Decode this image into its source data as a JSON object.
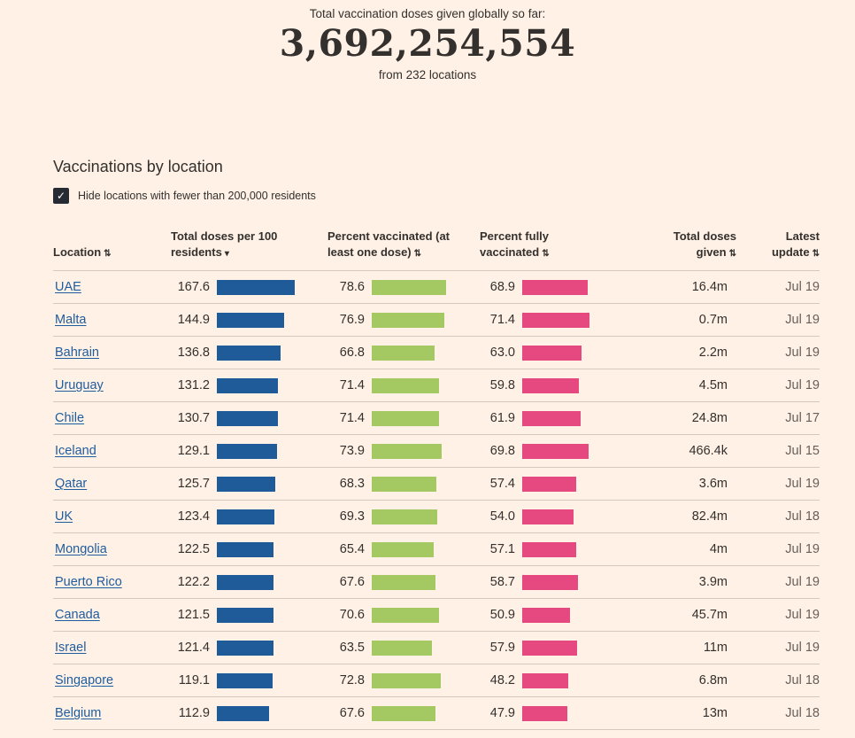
{
  "hero": {
    "label": "Total vaccination doses given globally so far:",
    "total": "3,692,254,554",
    "note": "from 232 locations"
  },
  "section": {
    "title": "Vaccinations by location",
    "filter": {
      "label": "Hide locations with fewer than 200,000 residents",
      "checked": true,
      "check_icon": "✓"
    }
  },
  "table": {
    "columns": [
      {
        "label": "Location",
        "sort_state": "sortable",
        "sort_icon": "⇅"
      },
      {
        "label": "Total doses per 100 residents",
        "sort_state": "desc",
        "sort_icon": "▾"
      },
      {
        "label": "Percent vaccinated (at least one dose)",
        "sort_state": "sortable",
        "sort_icon": "⇅"
      },
      {
        "label": "Percent fully vaccinated",
        "sort_state": "sortable",
        "sort_icon": "⇅"
      },
      {
        "label": "Total doses given",
        "sort_state": "sortable",
        "sort_icon": "⇅"
      },
      {
        "label": "Latest update",
        "sort_state": "sortable",
        "sort_icon": "⇅"
      }
    ],
    "rows": [
      {
        "location": "UAE",
        "doses_per_100": 167.6,
        "pct_vaccinated": 78.6,
        "pct_fully_vaccinated": 68.9,
        "total_doses_given": "16.4m",
        "latest_update": "Jul 19"
      },
      {
        "location": "Malta",
        "doses_per_100": 144.9,
        "pct_vaccinated": 76.9,
        "pct_fully_vaccinated": 71.4,
        "total_doses_given": "0.7m",
        "latest_update": "Jul 19"
      },
      {
        "location": "Bahrain",
        "doses_per_100": 136.8,
        "pct_vaccinated": 66.8,
        "pct_fully_vaccinated": 63.0,
        "total_doses_given": "2.2m",
        "latest_update": "Jul 19"
      },
      {
        "location": "Uruguay",
        "doses_per_100": 131.2,
        "pct_vaccinated": 71.4,
        "pct_fully_vaccinated": 59.8,
        "total_doses_given": "4.5m",
        "latest_update": "Jul 19"
      },
      {
        "location": "Chile",
        "doses_per_100": 130.7,
        "pct_vaccinated": 71.4,
        "pct_fully_vaccinated": 61.9,
        "total_doses_given": "24.8m",
        "latest_update": "Jul 17"
      },
      {
        "location": "Iceland",
        "doses_per_100": 129.1,
        "pct_vaccinated": 73.9,
        "pct_fully_vaccinated": 69.8,
        "total_doses_given": "466.4k",
        "latest_update": "Jul 15"
      },
      {
        "location": "Qatar",
        "doses_per_100": 125.7,
        "pct_vaccinated": 68.3,
        "pct_fully_vaccinated": 57.4,
        "total_doses_given": "3.6m",
        "latest_update": "Jul 19"
      },
      {
        "location": "UK",
        "doses_per_100": 123.4,
        "pct_vaccinated": 69.3,
        "pct_fully_vaccinated": 54.0,
        "total_doses_given": "82.4m",
        "latest_update": "Jul 18"
      },
      {
        "location": "Mongolia",
        "doses_per_100": 122.5,
        "pct_vaccinated": 65.4,
        "pct_fully_vaccinated": 57.1,
        "total_doses_given": "4m",
        "latest_update": "Jul 19"
      },
      {
        "location": "Puerto Rico",
        "doses_per_100": 122.2,
        "pct_vaccinated": 67.6,
        "pct_fully_vaccinated": 58.7,
        "total_doses_given": "3.9m",
        "latest_update": "Jul 19"
      },
      {
        "location": "Canada",
        "doses_per_100": 121.5,
        "pct_vaccinated": 70.6,
        "pct_fully_vaccinated": 50.9,
        "total_doses_given": "45.7m",
        "latest_update": "Jul 19"
      },
      {
        "location": "Israel",
        "doses_per_100": 121.4,
        "pct_vaccinated": 63.5,
        "pct_fully_vaccinated": 57.9,
        "total_doses_given": "11m",
        "latest_update": "Jul 19"
      },
      {
        "location": "Singapore",
        "doses_per_100": 119.1,
        "pct_vaccinated": 72.8,
        "pct_fully_vaccinated": 48.2,
        "total_doses_given": "6.8m",
        "latest_update": "Jul 18"
      },
      {
        "location": "Belgium",
        "doses_per_100": 112.9,
        "pct_vaccinated": 67.6,
        "pct_fully_vaccinated": 47.9,
        "total_doses_given": "13m",
        "latest_update": "Jul 18"
      }
    ]
  },
  "colors": {
    "background": "#fff1e5",
    "text": "#33302e",
    "muted": "#66605c",
    "row_line": "#d4c9bc",
    "bar_blue": "#1f5b99",
    "bar_green": "#a4c962",
    "bar_pink": "#e64980",
    "link": "#205d9e"
  }
}
